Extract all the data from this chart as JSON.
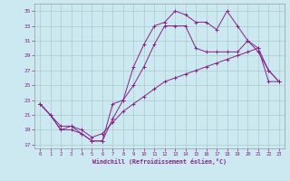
{
  "xlabel": "Windchill (Refroidissement éolien,°C)",
  "background_color": "#cce8f0",
  "line_color": "#882288",
  "grid_color": "#aacccc",
  "xlim": [
    -0.5,
    23.5
  ],
  "ylim": [
    16.5,
    36
  ],
  "yticks": [
    17,
    19,
    21,
    23,
    25,
    27,
    29,
    31,
    33,
    35
  ],
  "xticks": [
    0,
    1,
    2,
    3,
    4,
    5,
    6,
    7,
    8,
    9,
    10,
    11,
    12,
    13,
    14,
    15,
    16,
    17,
    18,
    19,
    20,
    21,
    22,
    23
  ],
  "line1_x": [
    0,
    1,
    2,
    3,
    4,
    5,
    6,
    7,
    8,
    9,
    10,
    11,
    12,
    13,
    14,
    15,
    16,
    17,
    18,
    19,
    20,
    21,
    22,
    23
  ],
  "line1_y": [
    22.5,
    21,
    19,
    19,
    18.5,
    17.5,
    17.5,
    20.5,
    23,
    27.5,
    30.5,
    33,
    33.5,
    35,
    34.5,
    33.5,
    33.5,
    32.5,
    35,
    33,
    31,
    29.5,
    27,
    25.5
  ],
  "line2_x": [
    0,
    1,
    2,
    3,
    4,
    5,
    6,
    7,
    8,
    9,
    10,
    11,
    12,
    13,
    14,
    15,
    16,
    17,
    18,
    19,
    20,
    21,
    22,
    23
  ],
  "line2_y": [
    22.5,
    21,
    19,
    19.5,
    18.5,
    17.5,
    17.5,
    22.5,
    23,
    25,
    27.5,
    30.5,
    33,
    33,
    33,
    30,
    29.5,
    29.5,
    29.5,
    29.5,
    31,
    30,
    27,
    25.5
  ],
  "line3_x": [
    0,
    1,
    2,
    3,
    4,
    5,
    6,
    7,
    8,
    9,
    10,
    11,
    12,
    13,
    14,
    15,
    16,
    17,
    18,
    19,
    20,
    21,
    22,
    23
  ],
  "line3_y": [
    22.5,
    21,
    19.5,
    19.5,
    19,
    18,
    18.5,
    20,
    21.5,
    22.5,
    23.5,
    24.5,
    25.5,
    26,
    26.5,
    27,
    27.5,
    28,
    28.5,
    29,
    29.5,
    30,
    25.5,
    25.5
  ]
}
